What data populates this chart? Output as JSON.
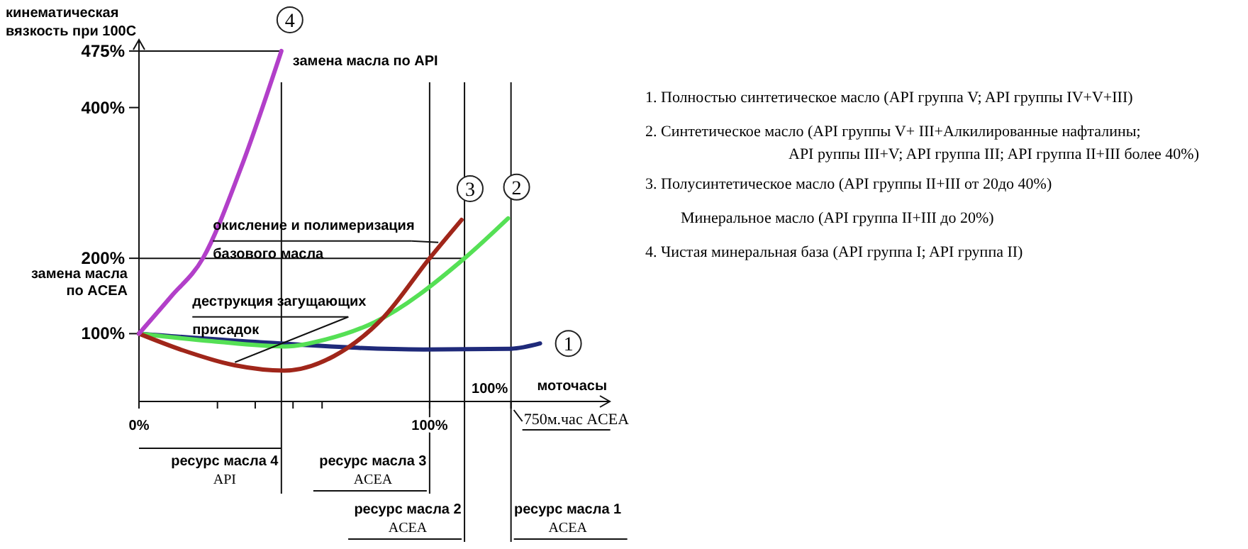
{
  "chart_data": {
    "type": "line",
    "xlabel": "моточасы",
    "ylabel": "кинематическая вязкость при 100С",
    "xlim": [
      0,
      162
    ],
    "ylim": [
      10,
      490
    ],
    "xticks": [
      {
        "value": 0,
        "label": "0%"
      },
      {
        "value": 27,
        "label": null
      },
      {
        "value": 40,
        "label": null
      },
      {
        "value": 53,
        "label": null
      },
      {
        "value": 63,
        "label": null
      },
      {
        "value": 100,
        "label": "100%"
      },
      {
        "value": 112,
        "label": null
      },
      {
        "value": 128,
        "label": null
      }
    ],
    "yticks": [
      {
        "value": 100,
        "label": "100%"
      },
      {
        "value": 200,
        "label": "200%"
      },
      {
        "value": 400,
        "label": "400%"
      },
      {
        "value": 475,
        "label": "475%"
      }
    ],
    "series": [
      {
        "name": "1",
        "color": "#1f2a7a",
        "x": [
          0,
          40,
          98,
          128,
          138
        ],
        "values": [
          100,
          89,
          79,
          80,
          87
        ]
      },
      {
        "name": "2",
        "color": "#55e055",
        "x": [
          0,
          25,
          50,
          64,
          81,
          112,
          127
        ],
        "values": [
          100,
          90,
          83,
          92,
          115,
          200,
          253
        ]
      },
      {
        "name": "3",
        "color": "#a0261a",
        "x": [
          0,
          15,
          33,
          50,
          67,
          84,
          100,
          111
        ],
        "values": [
          100,
          78,
          58,
          51,
          70,
          121,
          200,
          251
        ]
      },
      {
        "name": "4",
        "color": "#b23fc9",
        "x": [
          0,
          11,
          22,
          35,
          49
        ],
        "values": [
          100,
          149,
          200,
          319,
          475
        ]
      }
    ],
    "ref_lines": [
      {
        "axis": "y",
        "value": 475,
        "label": "замена масла по API"
      },
      {
        "axis": "y",
        "value": 200,
        "label": "замена масла по ACEA"
      },
      {
        "axis": "x",
        "value": 49,
        "label": "ресурс масла 4 API"
      },
      {
        "axis": "x",
        "value": 100,
        "label": "ресурс масла 3 ACEA"
      },
      {
        "axis": "x",
        "value": 112,
        "label": "ресурс масла 2 ACEA"
      },
      {
        "axis": "x",
        "value": 128,
        "label": "ресурс масла 1 ACEA"
      }
    ],
    "annotations": [
      {
        "text": "окисление и полимеризация базового масла",
        "x": 103,
        "y": 221
      },
      {
        "text": "деструкция загущающих присадок",
        "x": 33,
        "y": 62
      },
      {
        "text": "100%",
        "x": 112,
        "y": 10
      },
      {
        "text": "750м.час ACEA",
        "x": 128,
        "y": 10
      },
      "1. Полностью синтетическое масло (API группа V; API группы IV+V+III)",
      "2. Синтетическое масло (API группы V+ III+Алкилированные нафталины; API руппы III+V; API группа III; API группа II+III более 40%)",
      "3. Полусинтетическое масло (API группы II+III от 20до 40%)",
      "Минеральное масло (API группа II+III до 20%)",
      "4. Чистая минеральная база (API группа I; API группа II)"
    ],
    "legend": false,
    "grid": false
  }
}
